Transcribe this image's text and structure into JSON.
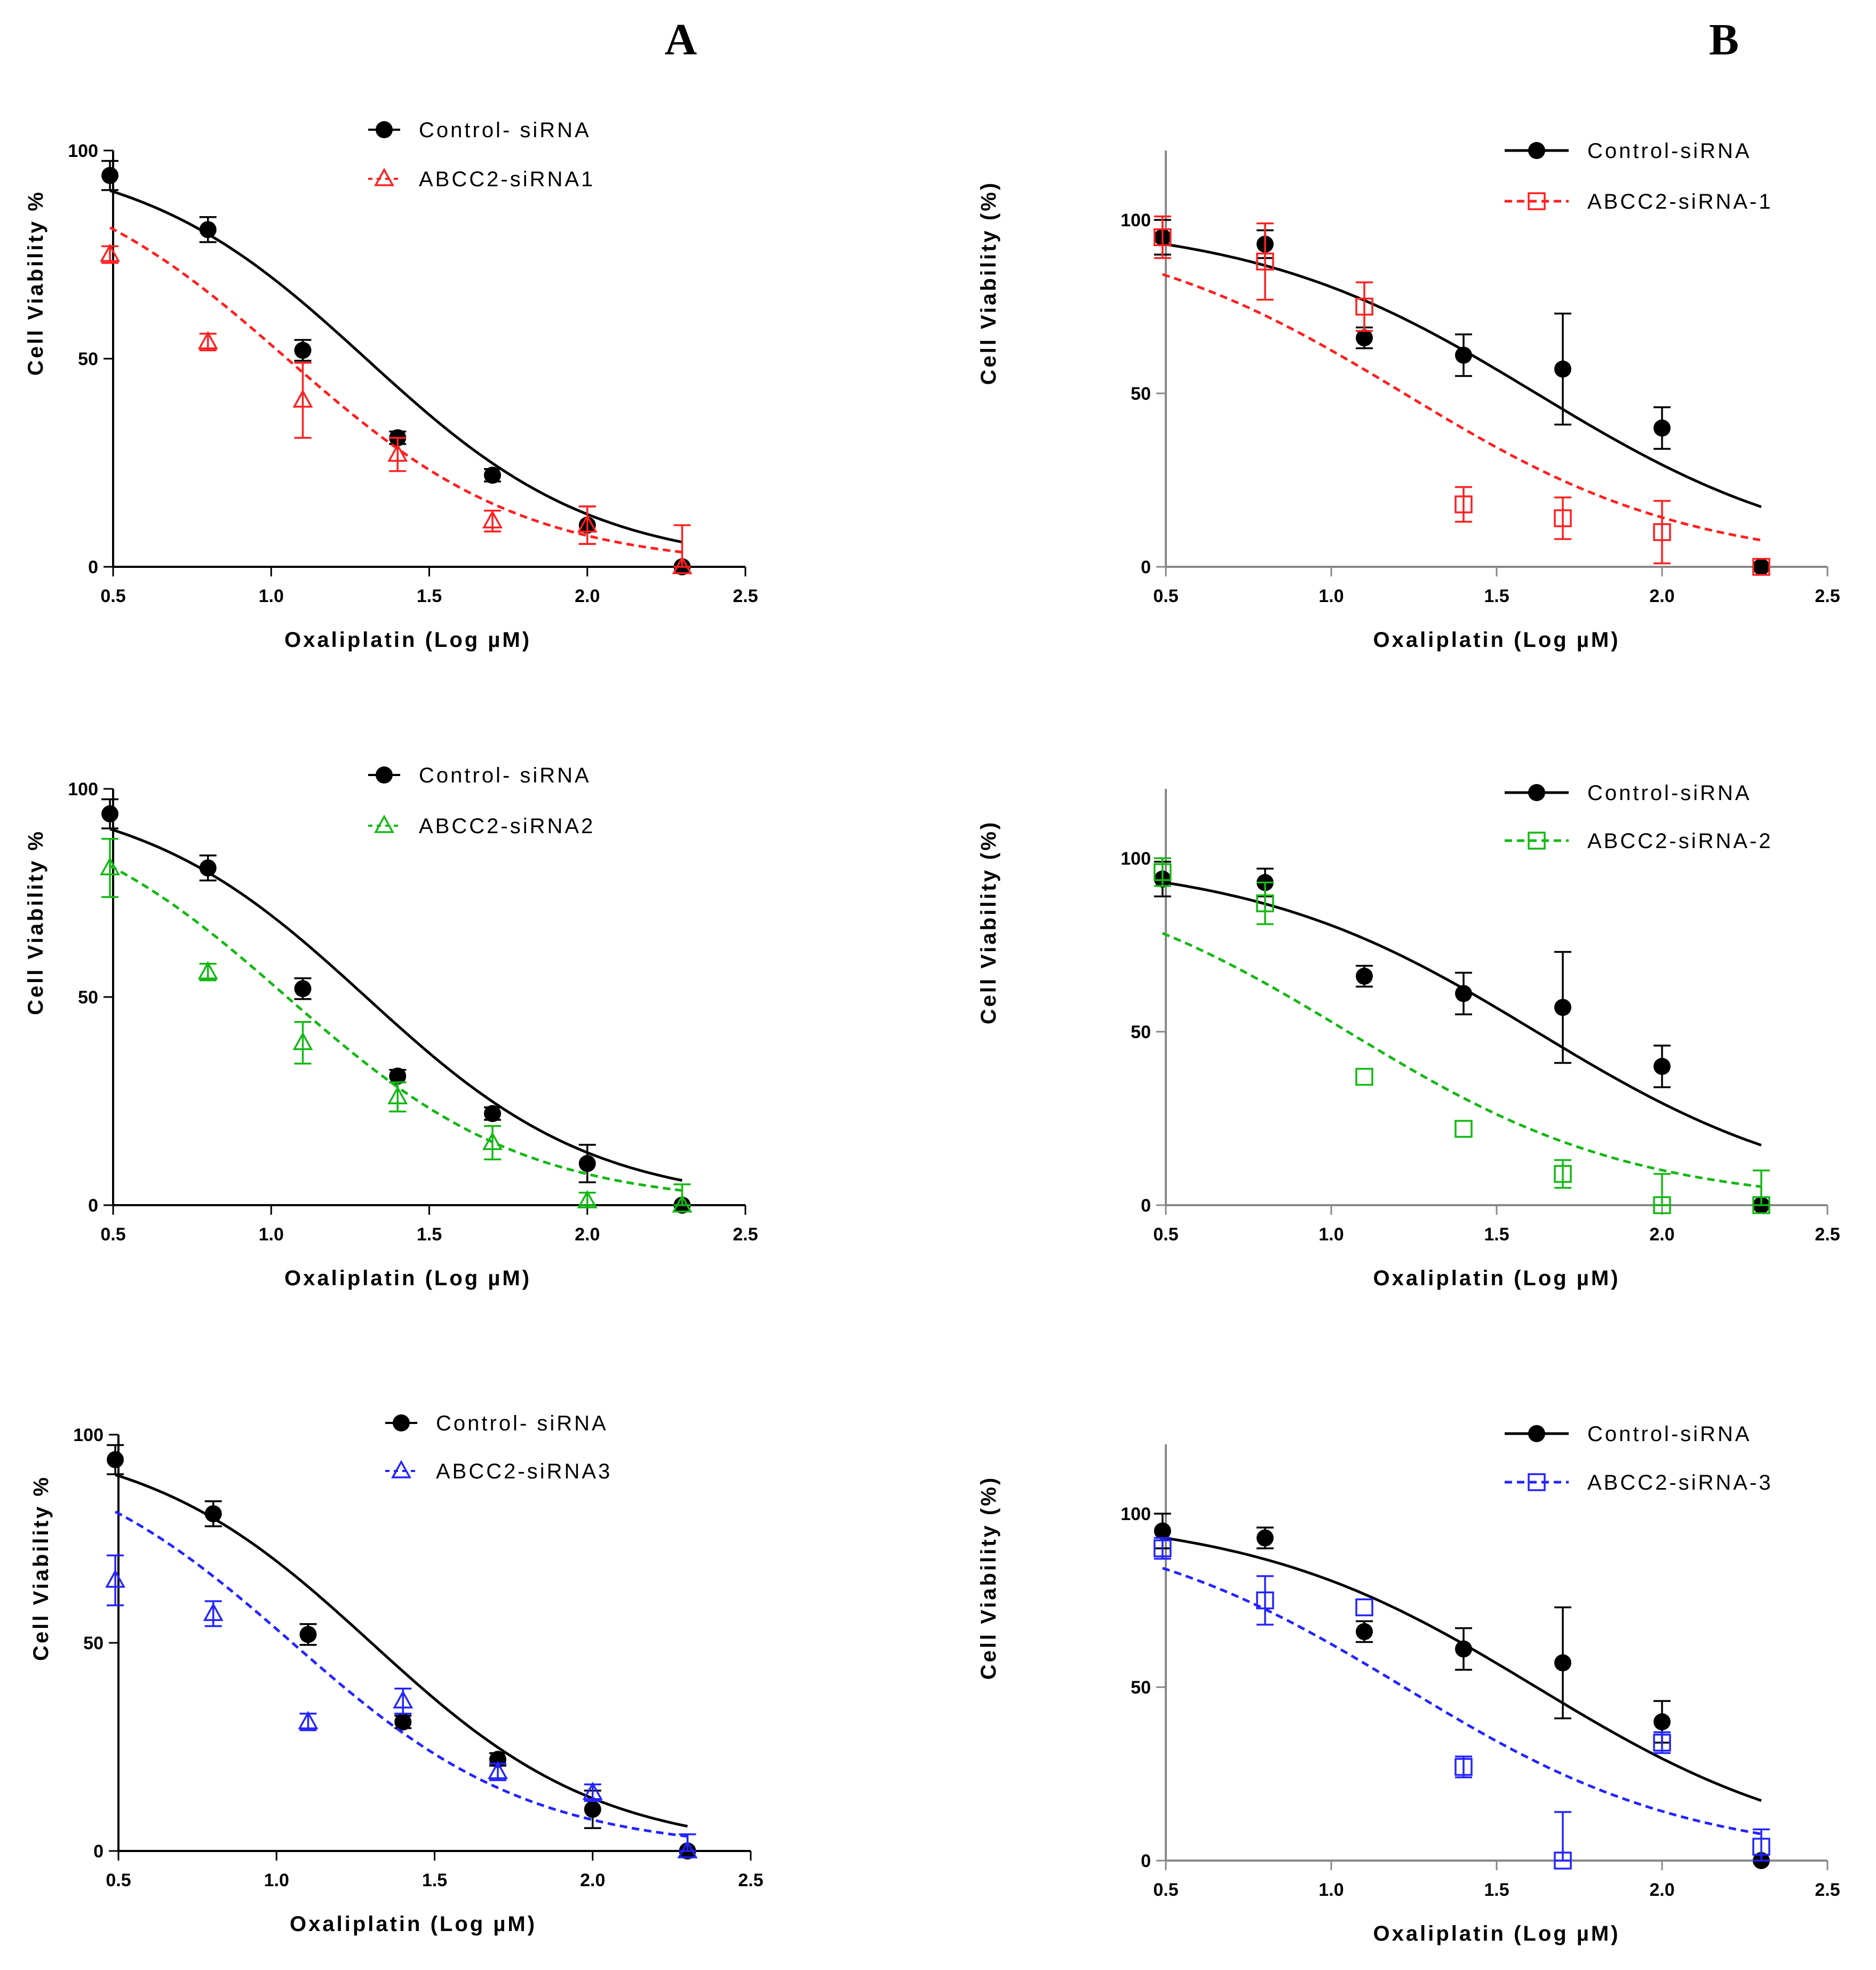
{
  "panel_labels": [
    "A",
    "B"
  ],
  "colors": {
    "control": "#000000",
    "red": "#ff2020",
    "green": "#14b814",
    "blue": "#2424ff",
    "axis_A": "#000000",
    "axis_B": "#888888"
  },
  "chart_data": [
    {
      "id": "A1",
      "type": "scatter",
      "panel": "A",
      "xlabel": "Oxaliplatin (Log µM)",
      "ylabel": "Cell Viability %",
      "xlim": [
        0.5,
        2.5
      ],
      "ylim": [
        0,
        100
      ],
      "xticks": [
        "0.5",
        "1.0",
        "1.5",
        "2.0",
        "2.5"
      ],
      "yticks": [
        "0",
        "50",
        "100"
      ],
      "x": [
        0.49,
        0.8,
        1.1,
        1.4,
        1.7,
        2.0,
        2.3
      ],
      "series": [
        {
          "name": "Control- siRNA",
          "marker": "circle",
          "color": "#000000",
          "line": "solid",
          "values": [
            94,
            81,
            52,
            31,
            22,
            10,
            0
          ],
          "err": [
            3.5,
            3,
            2.5,
            1.5,
            1.5,
            4.5,
            0
          ],
          "fit": {
            "top": 100,
            "bottom": 0,
            "logic50": 1.3,
            "hill": -1.2
          }
        },
        {
          "name": "ABCC2-siRNA1",
          "marker": "triangle",
          "color": "#ff2020",
          "line": "dashed",
          "values": [
            75,
            54,
            40,
            27,
            11,
            10,
            0
          ],
          "err": [
            2,
            2,
            9,
            4,
            2.5,
            4.5,
            10
          ],
          "fit": {
            "top": 100,
            "bottom": 0,
            "logic50": 1.05,
            "hill": -1.15
          }
        }
      ]
    },
    {
      "id": "A2",
      "type": "scatter",
      "panel": "A",
      "xlabel": "Oxaliplatin (Log µM)",
      "ylabel": "Cell Viability %",
      "xlim": [
        0.5,
        2.5
      ],
      "ylim": [
        0,
        100
      ],
      "xticks": [
        "0.5",
        "1.0",
        "1.5",
        "2.0",
        "2.5"
      ],
      "yticks": [
        "0",
        "50",
        "100"
      ],
      "x": [
        0.49,
        0.8,
        1.1,
        1.4,
        1.7,
        2.0,
        2.3
      ],
      "series": [
        {
          "name": "Control- siRNA",
          "marker": "circle",
          "color": "#000000",
          "line": "solid",
          "values": [
            94,
            81,
            52,
            31,
            22,
            10,
            0
          ],
          "err": [
            3.5,
            3,
            2.5,
            1.5,
            1.5,
            4.5,
            0
          ],
          "fit": {
            "top": 100,
            "bottom": 0,
            "logic50": 1.3,
            "hill": -1.2
          }
        },
        {
          "name": "ABCC2-siRNA2",
          "marker": "triangle",
          "color": "#14b814",
          "line": "dashed",
          "values": [
            81,
            56,
            39,
            26,
            15,
            1,
            0
          ],
          "err": [
            7,
            2,
            5,
            3.5,
            4,
            2,
            5
          ],
          "fit": {
            "top": 100,
            "bottom": 0,
            "logic50": 1.05,
            "hill": -1.15
          }
        }
      ]
    },
    {
      "id": "A3",
      "type": "scatter",
      "panel": "A",
      "xlabel": "Oxaliplatin (Log µM)",
      "ylabel": "Cell Viability %",
      "xlim": [
        0.5,
        2.5
      ],
      "ylim": [
        0,
        100
      ],
      "xticks": [
        "0.5",
        "1.0",
        "1.5",
        "2.0",
        "2.5"
      ],
      "yticks": [
        "0",
        "50",
        "100"
      ],
      "x": [
        0.49,
        0.8,
        1.1,
        1.4,
        1.7,
        2.0,
        2.3
      ],
      "series": [
        {
          "name": "Control- siRNA",
          "marker": "circle",
          "color": "#000000",
          "line": "solid",
          "values": [
            94,
            81,
            52,
            31,
            22,
            10,
            0
          ],
          "err": [
            3.5,
            3,
            2.5,
            1.5,
            1.5,
            4.5,
            4
          ],
          "fit": {
            "top": 100,
            "bottom": 0,
            "logic50": 1.3,
            "hill": -1.2
          }
        },
        {
          "name": "ABCC2-siRNA3",
          "marker": "triangle",
          "color": "#2424ff",
          "line": "dashed",
          "values": [
            65,
            57,
            31,
            36,
            19,
            14,
            0
          ],
          "err": [
            6,
            3,
            2,
            3,
            2,
            2,
            4
          ],
          "fit": {
            "top": 100,
            "bottom": 0,
            "logic50": 1.05,
            "hill": -1.15
          }
        }
      ]
    },
    {
      "id": "B1",
      "type": "scatter",
      "panel": "B",
      "xlabel": "Oxaliplatin (Log µM)",
      "ylabel": "Cell Viability (%)",
      "xlim": [
        0.5,
        2.5
      ],
      "ylim": [
        0,
        120
      ],
      "xticks": [
        "0.5",
        "1.0",
        "1.5",
        "2.0",
        "2.5"
      ],
      "yticks": [
        "0",
        "50",
        "100"
      ],
      "x": [
        0.49,
        0.8,
        1.1,
        1.4,
        1.7,
        2.0,
        2.3
      ],
      "series": [
        {
          "name": "Control-siRNA",
          "marker": "circle",
          "color": "#000000",
          "line": "solid",
          "values": [
            95,
            93,
            66,
            61,
            57,
            40,
            0
          ],
          "err": [
            5,
            4,
            3,
            6,
            16,
            6,
            0
          ],
          "fit": {
            "top": 100,
            "bottom": 0,
            "logic50": 1.62,
            "hill": -1.0
          }
        },
        {
          "name": "ABCC2-siRNA-1",
          "marker": "square",
          "color": "#ff2020",
          "line": "dashed",
          "values": [
            95,
            88,
            75,
            18,
            14,
            10,
            0
          ],
          "err": [
            6,
            11,
            7,
            5,
            6,
            9,
            0
          ],
          "fit": {
            "top": 100,
            "bottom": 0,
            "logic50": 1.22,
            "hill": -1.0
          }
        }
      ]
    },
    {
      "id": "B2",
      "type": "scatter",
      "panel": "B",
      "xlabel": "Oxaliplatin (Log µM)",
      "ylabel": "Cell Viability (%)",
      "xlim": [
        0.5,
        2.5
      ],
      "ylim": [
        0,
        120
      ],
      "xticks": [
        "0.5",
        "1.0",
        "1.5",
        "2.0",
        "2.5"
      ],
      "yticks": [
        "0",
        "50",
        "100"
      ],
      "x": [
        0.49,
        0.8,
        1.1,
        1.4,
        1.7,
        2.0,
        2.3
      ],
      "series": [
        {
          "name": "Control-siRNA",
          "marker": "circle",
          "color": "#000000",
          "line": "solid",
          "values": [
            94,
            93,
            66,
            61,
            57,
            40,
            0
          ],
          "err": [
            5,
            4,
            3,
            6,
            16,
            6,
            0
          ],
          "fit": {
            "top": 100,
            "bottom": 0,
            "logic50": 1.62,
            "hill": -1.0
          }
        },
        {
          "name": "ABCC2-siRNA-2",
          "marker": "square",
          "color": "#14b814",
          "line": "dashed",
          "values": [
            96,
            87,
            37,
            22,
            9,
            0,
            0
          ],
          "err": [
            4,
            6,
            0,
            0,
            4,
            9,
            10
          ],
          "fit": {
            "top": 100,
            "bottom": 0,
            "logic50": 1.05,
            "hill": -1.0
          }
        }
      ]
    },
    {
      "id": "B3",
      "type": "scatter",
      "panel": "B",
      "xlabel": "Oxaliplatin (Log µM)",
      "ylabel": "Cell Viability (%)",
      "xlim": [
        0.5,
        2.5
      ],
      "ylim": [
        0,
        120
      ],
      "xticks": [
        "0.5",
        "1.0",
        "1.5",
        "2.0",
        "2.5"
      ],
      "yticks": [
        "0",
        "50",
        "100"
      ],
      "x": [
        0.49,
        0.8,
        1.1,
        1.4,
        1.7,
        2.0,
        2.3
      ],
      "series": [
        {
          "name": "Control-siRNA",
          "marker": "circle",
          "color": "#000000",
          "line": "solid",
          "values": [
            95,
            93,
            66,
            61,
            57,
            40,
            0
          ],
          "err": [
            5,
            3,
            3,
            6,
            16,
            6,
            0
          ],
          "fit": {
            "top": 100,
            "bottom": 0,
            "logic50": 1.62,
            "hill": -1.0
          }
        },
        {
          "name": "ABCC2-siRNA-3",
          "marker": "square",
          "color": "#2424ff",
          "line": "dashed",
          "values": [
            90,
            75,
            73,
            27,
            0,
            34,
            4
          ],
          "err": [
            3,
            7,
            0,
            3,
            14,
            3,
            5
          ],
          "fit": {
            "top": 100,
            "bottom": 0,
            "logic50": 1.22,
            "hill": -1.0
          }
        }
      ]
    }
  ]
}
